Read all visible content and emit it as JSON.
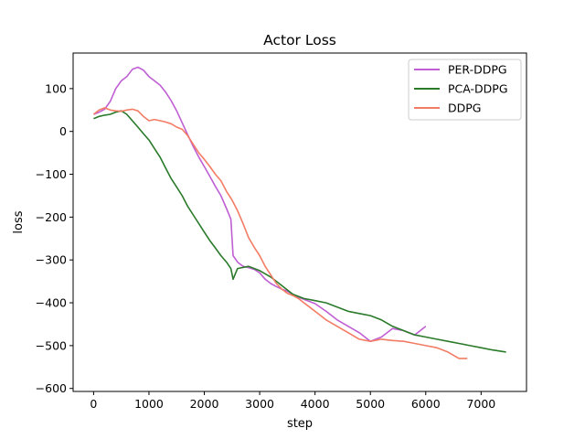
{
  "chart_data": {
    "type": "line",
    "title": "Actor Loss",
    "xlabel": "step",
    "ylabel": "loss",
    "xlim": [
      -370,
      7820
    ],
    "ylim": [
      -607,
      183
    ],
    "xticks": [
      0,
      1000,
      2000,
      3000,
      4000,
      5000,
      6000,
      7000
    ],
    "yticks": [
      100,
      0,
      -100,
      -200,
      -300,
      -400,
      -500,
      -600
    ],
    "grid": false,
    "legend_position": "top-right",
    "series": [
      {
        "name": "PER-DDPG",
        "color": "#bf5fd3",
        "x": [
          0,
          100,
          200,
          300,
          400,
          500,
          600,
          700,
          800,
          900,
          1000,
          1100,
          1200,
          1300,
          1400,
          1500,
          1600,
          1700,
          1800,
          1900,
          2000,
          2100,
          2200,
          2300,
          2400,
          2480,
          2520,
          2600,
          2700,
          2800,
          2900,
          3000,
          3100,
          3200,
          3300,
          3400,
          3500,
          3600,
          3700,
          3800,
          3900,
          4000,
          4200,
          4400,
          4600,
          4800,
          5000,
          5200,
          5400,
          5600,
          5800,
          6000
        ],
        "y": [
          40,
          45,
          52,
          70,
          100,
          118,
          128,
          145,
          150,
          143,
          128,
          118,
          108,
          92,
          72,
          48,
          20,
          -8,
          -35,
          -60,
          -82,
          -105,
          -128,
          -150,
          -180,
          -205,
          -290,
          -305,
          -315,
          -318,
          -322,
          -330,
          -345,
          -355,
          -362,
          -368,
          -373,
          -380,
          -387,
          -392,
          -397,
          -402,
          -420,
          -440,
          -455,
          -470,
          -490,
          -480,
          -460,
          -465,
          -475,
          -455
        ]
      },
      {
        "name": "PCA-DDPG",
        "color": "#2a7a2a",
        "x": [
          0,
          100,
          200,
          300,
          400,
          500,
          600,
          700,
          800,
          900,
          1000,
          1100,
          1200,
          1300,
          1400,
          1500,
          1600,
          1700,
          1800,
          1900,
          2000,
          2100,
          2200,
          2300,
          2400,
          2480,
          2520,
          2600,
          2800,
          3000,
          3200,
          3400,
          3600,
          3800,
          4000,
          4200,
          4400,
          4600,
          4800,
          5000,
          5200,
          5400,
          5600,
          5800,
          6000,
          6200,
          6400,
          6600,
          6800,
          7000,
          7200,
          7450
        ],
        "y": [
          30,
          35,
          38,
          40,
          45,
          48,
          40,
          25,
          10,
          -5,
          -20,
          -40,
          -60,
          -85,
          -110,
          -130,
          -150,
          -175,
          -195,
          -215,
          -235,
          -255,
          -272,
          -290,
          -305,
          -320,
          -345,
          -320,
          -315,
          -325,
          -340,
          -360,
          -380,
          -390,
          -395,
          -400,
          -410,
          -420,
          -425,
          -430,
          -440,
          -455,
          -465,
          -475,
          -480,
          -485,
          -490,
          -495,
          -500,
          -505,
          -510,
          -515
        ]
      },
      {
        "name": "DDPG",
        "color": "#f37c65",
        "x": [
          0,
          100,
          200,
          300,
          400,
          500,
          600,
          700,
          800,
          900,
          1000,
          1100,
          1200,
          1300,
          1400,
          1500,
          1600,
          1700,
          1800,
          1900,
          2000,
          2100,
          2200,
          2300,
          2400,
          2500,
          2600,
          2700,
          2800,
          2900,
          3000,
          3100,
          3200,
          3300,
          3400,
          3500,
          3600,
          3700,
          3800,
          3900,
          4000,
          4200,
          4400,
          4600,
          4800,
          5000,
          5200,
          5400,
          5600,
          5800,
          6000,
          6200,
          6400,
          6600,
          6750
        ],
        "y": [
          40,
          50,
          55,
          50,
          48,
          47,
          50,
          52,
          48,
          35,
          25,
          28,
          25,
          22,
          18,
          10,
          5,
          -10,
          -30,
          -50,
          -65,
          -82,
          -100,
          -115,
          -140,
          -160,
          -185,
          -215,
          -248,
          -270,
          -290,
          -315,
          -335,
          -355,
          -368,
          -378,
          -383,
          -390,
          -400,
          -410,
          -420,
          -440,
          -455,
          -470,
          -485,
          -490,
          -485,
          -488,
          -490,
          -495,
          -500,
          -505,
          -515,
          -530,
          -530
        ]
      }
    ]
  }
}
